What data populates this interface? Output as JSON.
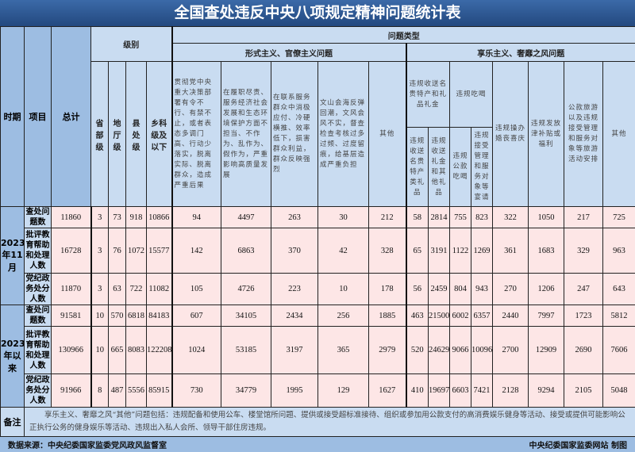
{
  "title": "全国查处违反中央八项规定精神问题统计表",
  "headers": {
    "period": "时期",
    "item": "项目",
    "total": "总计",
    "level": "级别",
    "problem_type": "问题类型",
    "levels": [
      "省部级",
      "地厅级",
      "县处级",
      "乡科级及以下"
    ],
    "formalism": "形式主义、官僚主义问题",
    "formalism_cols": [
      "贯彻党中央重大决策部署有令不行、有禁不止，或者表态多调门高、行动少落实，脱离实际、脱离群众，造成严重后果",
      "在履职尽责、服务经济社会发展和生态环境保护方面不担当、不作为、乱作为、假作为，严重影响高质量发展",
      "在联系服务群众中消极应付、冷硬横推、效率低下，损害群众利益，群众反映强烈",
      "文山会海反弹回潮，文风会风不实，督查检查考核过多过频、过度留痕，给基层造成严重负担",
      "其他"
    ],
    "hedonism": "享乐主义、奢靡之风问题",
    "gifts": "违规收送名贵特产和礼品礼金",
    "gifts_sub": [
      "违规收送名贵特产类礼品",
      "违规收送礼金和其他礼品"
    ],
    "dining": "违规吃喝",
    "dining_sub": [
      "违规公款吃喝",
      "违规接受管理和服务对象等宴请"
    ],
    "hedonism_cols": [
      "违规操办婚丧喜庆",
      "违规发放津补贴或福利",
      "公款旅游以及违规接受管理和服务对象等旅游活动安排",
      "其他"
    ]
  },
  "periods": [
    {
      "label": "2023年11月",
      "rows": [
        {
          "item": "查处问题数",
          "values": [
            "11860",
            "3",
            "73",
            "918",
            "10866",
            "94",
            "4497",
            "263",
            "30",
            "212",
            "58",
            "2814",
            "755",
            "823",
            "322",
            "1050",
            "217",
            "725"
          ]
        },
        {
          "item": "批评教育帮助和处理人数",
          "values": [
            "16728",
            "3",
            "76",
            "1072",
            "15577",
            "142",
            "6863",
            "370",
            "42",
            "328",
            "65",
            "3191",
            "1122",
            "1269",
            "361",
            "1683",
            "329",
            "963"
          ]
        },
        {
          "item": "党纪政务处分人数",
          "values": [
            "11870",
            "3",
            "63",
            "722",
            "11082",
            "105",
            "4726",
            "223",
            "10",
            "178",
            "56",
            "2459",
            "804",
            "943",
            "270",
            "1206",
            "247",
            "643"
          ]
        }
      ]
    },
    {
      "label": "2023年以来",
      "rows": [
        {
          "item": "查处问题数",
          "values": [
            "91581",
            "10",
            "570",
            "6818",
            "84183",
            "607",
            "34105",
            "2434",
            "256",
            "1885",
            "463",
            "21500",
            "6002",
            "6357",
            "2440",
            "7997",
            "1723",
            "5812"
          ]
        },
        {
          "item": "批评教育帮助和处理人数",
          "values": [
            "130966",
            "10",
            "665",
            "8083",
            "122208",
            "1024",
            "53185",
            "3197",
            "365",
            "2979",
            "520",
            "24629",
            "9066",
            "10096",
            "2700",
            "12909",
            "2690",
            "7606"
          ]
        },
        {
          "item": "党纪政务处分人数",
          "values": [
            "91966",
            "8",
            "487",
            "5556",
            "85915",
            "730",
            "34779",
            "1995",
            "129",
            "1627",
            "410",
            "19697",
            "6603",
            "7421",
            "2128",
            "9294",
            "2105",
            "5048"
          ]
        }
      ]
    }
  ],
  "note": {
    "label": "备注",
    "text": "享乐主义、奢靡之风“其他”问题包括：违规配备和使用公车、楼堂馆所问题、提供或接受超标准接待、组织或参加用公款支付的高消费娱乐健身等活动、接受或提供可能影响公正执行公务的健身娱乐等活动、违规出入私人会所、领导干部住房违规。"
  },
  "footer": {
    "source": "数据来源：中央纪委国家监委党风政风监督室",
    "credit": "中央纪委国家监委网站 制图"
  }
}
